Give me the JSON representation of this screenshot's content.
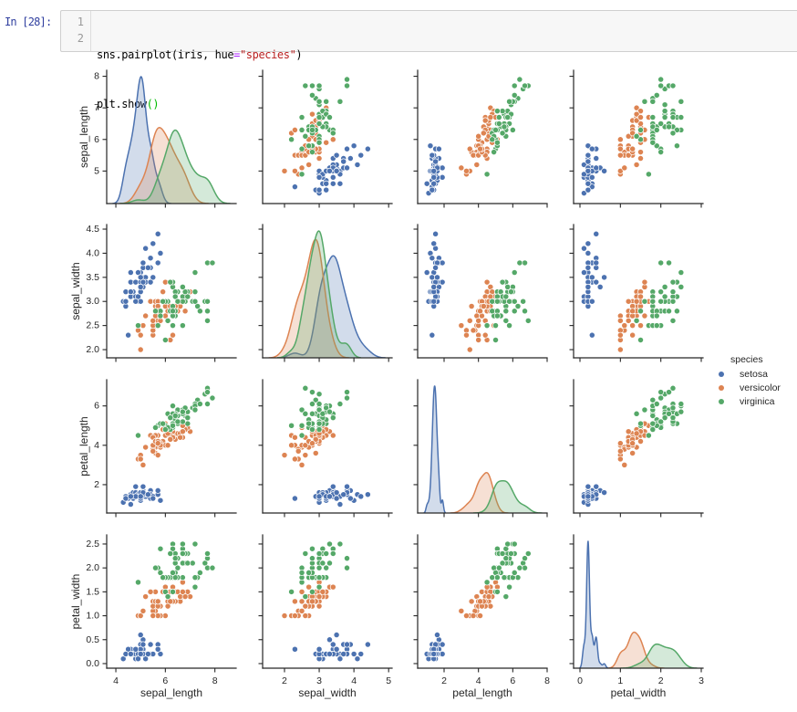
{
  "cell": {
    "prompt": "In [28]:",
    "lines": [
      {
        "number": "1",
        "tokens": [
          {
            "text": "sns.pairplot(iris, hue",
            "kind": "plain"
          },
          {
            "text": "=",
            "kind": "operator"
          },
          {
            "text": "\"species\"",
            "kind": "string"
          },
          {
            "text": ")",
            "kind": "plain"
          }
        ]
      },
      {
        "number": "2",
        "tokens": [
          {
            "text": "plt.show",
            "kind": "plain"
          },
          {
            "text": "()",
            "kind": "bracket"
          }
        ]
      }
    ]
  },
  "chart_data": {
    "type": "scatter",
    "subtype": "pairplot",
    "title": "",
    "grid": false,
    "diag_kind": "kde",
    "hue": "species",
    "variables": [
      "sepal_length",
      "sepal_width",
      "petal_length",
      "petal_width"
    ],
    "axes": {
      "sepal_length": {
        "xlim": [
          3.63,
          8.86
        ],
        "ylim": [
          3.97,
          8.19
        ],
        "xticks": [
          4,
          6,
          8
        ],
        "xtick_labels": [
          "4",
          "6",
          "8"
        ],
        "yticks": [
          5,
          6,
          7,
          8
        ],
        "ytick_labels": [
          "5",
          "6",
          "7",
          "8"
        ]
      },
      "sepal_width": {
        "xlim": [
          1.37,
          5.1
        ],
        "ylim": [
          1.83,
          4.595
        ],
        "xticks": [
          2,
          3,
          4,
          5
        ],
        "xtick_labels": [
          "2",
          "3",
          "4",
          "5"
        ],
        "yticks": [
          2.0,
          2.5,
          3.0,
          3.5,
          4.0,
          4.5
        ],
        "ytick_labels": [
          "2.0",
          "2.5",
          "3.0",
          "3.5",
          "4.0",
          "4.5"
        ]
      },
      "petal_length": {
        "xlim": [
          0.46,
          8.0
        ],
        "ylim": [
          0.56,
          7.33
        ],
        "xticks": [
          2,
          4,
          6,
          8
        ],
        "xtick_labels": [
          "2",
          "4",
          "6",
          "8"
        ],
        "yticks": [
          2,
          4,
          6
        ],
        "ytick_labels": [
          "2",
          "4",
          "6"
        ]
      },
      "petal_width": {
        "xlim": [
          -0.158,
          3.045
        ],
        "ylim": [
          -0.096,
          2.69
        ],
        "xticks": [
          0,
          1,
          2,
          3
        ],
        "xtick_labels": [
          "0",
          "1",
          "2",
          "3"
        ],
        "yticks": [
          0.0,
          0.5,
          1.0,
          1.5,
          2.0,
          2.5
        ],
        "ytick_labels": [
          "0.0",
          "0.5",
          "1.0",
          "1.5",
          "2.0",
          "2.5"
        ]
      }
    },
    "legend": {
      "title": "species",
      "position": "right",
      "entries": [
        {
          "label": "setosa",
          "color": "#4c72b0"
        },
        {
          "label": "versicolor",
          "color": "#dd8452"
        },
        {
          "label": "virginica",
          "color": "#55a868"
        }
      ]
    },
    "point_columns": [
      "sepal_length",
      "sepal_width",
      "petal_length",
      "petal_width"
    ],
    "series": [
      {
        "name": "setosa",
        "color": "#4c72b0",
        "points": [
          [
            5.1,
            3.5,
            1.4,
            0.2
          ],
          [
            4.9,
            3.0,
            1.4,
            0.2
          ],
          [
            4.7,
            3.2,
            1.3,
            0.2
          ],
          [
            4.6,
            3.1,
            1.5,
            0.2
          ],
          [
            5.0,
            3.6,
            1.4,
            0.2
          ],
          [
            5.4,
            3.9,
            1.7,
            0.4
          ],
          [
            4.6,
            3.4,
            1.4,
            0.3
          ],
          [
            5.0,
            3.4,
            1.5,
            0.2
          ],
          [
            4.4,
            2.9,
            1.4,
            0.2
          ],
          [
            4.9,
            3.1,
            1.5,
            0.1
          ],
          [
            5.4,
            3.7,
            1.5,
            0.2
          ],
          [
            4.8,
            3.4,
            1.6,
            0.2
          ],
          [
            4.8,
            3.0,
            1.4,
            0.1
          ],
          [
            4.3,
            3.0,
            1.1,
            0.1
          ],
          [
            5.8,
            4.0,
            1.2,
            0.2
          ],
          [
            5.7,
            4.4,
            1.5,
            0.4
          ],
          [
            5.4,
            3.9,
            1.3,
            0.4
          ],
          [
            5.1,
            3.5,
            1.4,
            0.3
          ],
          [
            5.7,
            3.8,
            1.7,
            0.3
          ],
          [
            5.1,
            3.8,
            1.5,
            0.3
          ],
          [
            5.4,
            3.4,
            1.7,
            0.2
          ],
          [
            5.1,
            3.7,
            1.5,
            0.4
          ],
          [
            4.6,
            3.6,
            1.0,
            0.2
          ],
          [
            5.1,
            3.3,
            1.7,
            0.5
          ],
          [
            4.8,
            3.4,
            1.9,
            0.2
          ],
          [
            5.0,
            3.0,
            1.6,
            0.2
          ],
          [
            5.0,
            3.4,
            1.6,
            0.4
          ],
          [
            5.2,
            3.5,
            1.5,
            0.2
          ],
          [
            5.2,
            3.4,
            1.4,
            0.2
          ],
          [
            4.7,
            3.2,
            1.6,
            0.2
          ],
          [
            4.8,
            3.1,
            1.6,
            0.2
          ],
          [
            5.4,
            3.4,
            1.5,
            0.4
          ],
          [
            5.2,
            4.1,
            1.5,
            0.1
          ],
          [
            5.5,
            4.2,
            1.4,
            0.2
          ],
          [
            4.9,
            3.1,
            1.5,
            0.2
          ],
          [
            5.0,
            3.2,
            1.2,
            0.2
          ],
          [
            5.5,
            3.5,
            1.3,
            0.2
          ],
          [
            4.9,
            3.6,
            1.4,
            0.1
          ],
          [
            4.4,
            3.0,
            1.3,
            0.2
          ],
          [
            5.1,
            3.4,
            1.5,
            0.2
          ],
          [
            5.0,
            3.5,
            1.3,
            0.3
          ],
          [
            4.5,
            2.3,
            1.3,
            0.3
          ],
          [
            4.4,
            3.2,
            1.3,
            0.2
          ],
          [
            5.0,
            3.5,
            1.6,
            0.6
          ],
          [
            5.1,
            3.8,
            1.9,
            0.4
          ],
          [
            4.8,
            3.0,
            1.4,
            0.3
          ],
          [
            5.1,
            3.8,
            1.6,
            0.2
          ],
          [
            4.6,
            3.2,
            1.4,
            0.2
          ],
          [
            5.3,
            3.7,
            1.5,
            0.2
          ],
          [
            5.0,
            3.3,
            1.4,
            0.2
          ]
        ]
      },
      {
        "name": "versicolor",
        "color": "#dd8452",
        "points": [
          [
            7.0,
            3.2,
            4.7,
            1.4
          ],
          [
            6.4,
            3.2,
            4.5,
            1.5
          ],
          [
            6.9,
            3.1,
            4.9,
            1.5
          ],
          [
            5.5,
            2.3,
            4.0,
            1.3
          ],
          [
            6.5,
            2.8,
            4.6,
            1.5
          ],
          [
            5.7,
            2.8,
            4.5,
            1.3
          ],
          [
            6.3,
            3.3,
            4.7,
            1.6
          ],
          [
            4.9,
            2.4,
            3.3,
            1.0
          ],
          [
            6.6,
            2.9,
            4.6,
            1.3
          ],
          [
            5.2,
            2.7,
            3.9,
            1.4
          ],
          [
            5.0,
            2.0,
            3.5,
            1.0
          ],
          [
            5.9,
            3.0,
            4.2,
            1.5
          ],
          [
            6.0,
            2.2,
            4.0,
            1.0
          ],
          [
            6.1,
            2.9,
            4.7,
            1.4
          ],
          [
            5.6,
            2.9,
            3.6,
            1.3
          ],
          [
            6.7,
            3.1,
            4.4,
            1.4
          ],
          [
            5.6,
            3.0,
            4.5,
            1.5
          ],
          [
            5.8,
            2.7,
            4.1,
            1.0
          ],
          [
            6.2,
            2.2,
            4.5,
            1.5
          ],
          [
            5.6,
            2.5,
            3.9,
            1.1
          ],
          [
            5.9,
            3.2,
            4.8,
            1.8
          ],
          [
            6.1,
            2.8,
            4.0,
            1.3
          ],
          [
            6.3,
            2.5,
            4.9,
            1.5
          ],
          [
            6.1,
            2.8,
            4.7,
            1.2
          ],
          [
            6.4,
            2.9,
            4.3,
            1.3
          ],
          [
            6.6,
            3.0,
            4.4,
            1.4
          ],
          [
            6.8,
            2.8,
            4.8,
            1.4
          ],
          [
            6.7,
            3.0,
            5.0,
            1.7
          ],
          [
            6.0,
            2.9,
            4.5,
            1.5
          ],
          [
            5.7,
            2.6,
            3.5,
            1.0
          ],
          [
            5.5,
            2.4,
            3.8,
            1.1
          ],
          [
            5.5,
            2.4,
            3.7,
            1.0
          ],
          [
            5.8,
            2.7,
            3.9,
            1.2
          ],
          [
            6.0,
            2.7,
            5.1,
            1.6
          ],
          [
            5.4,
            3.0,
            4.5,
            1.5
          ],
          [
            6.0,
            3.4,
            4.5,
            1.6
          ],
          [
            6.7,
            3.1,
            4.7,
            1.5
          ],
          [
            6.3,
            2.3,
            4.4,
            1.3
          ],
          [
            5.6,
            3.0,
            4.1,
            1.3
          ],
          [
            5.5,
            2.5,
            4.0,
            1.3
          ],
          [
            5.5,
            2.6,
            4.4,
            1.2
          ],
          [
            6.1,
            3.0,
            4.6,
            1.4
          ],
          [
            5.8,
            2.6,
            4.0,
            1.2
          ],
          [
            5.0,
            2.3,
            3.3,
            1.0
          ],
          [
            5.6,
            2.7,
            4.2,
            1.3
          ],
          [
            5.7,
            3.0,
            4.2,
            1.2
          ],
          [
            5.7,
            2.9,
            4.2,
            1.3
          ],
          [
            6.2,
            2.9,
            4.3,
            1.3
          ],
          [
            5.1,
            2.5,
            3.0,
            1.1
          ],
          [
            5.7,
            2.8,
            4.1,
            1.3
          ]
        ]
      },
      {
        "name": "virginica",
        "color": "#55a868",
        "points": [
          [
            6.3,
            3.3,
            6.0,
            2.5
          ],
          [
            5.8,
            2.7,
            5.1,
            1.9
          ],
          [
            7.1,
            3.0,
            5.9,
            2.1
          ],
          [
            6.3,
            2.9,
            5.6,
            1.8
          ],
          [
            6.5,
            3.0,
            5.8,
            2.2
          ],
          [
            7.6,
            3.0,
            6.6,
            2.1
          ],
          [
            4.9,
            2.5,
            4.5,
            1.7
          ],
          [
            7.3,
            2.9,
            6.3,
            1.8
          ],
          [
            6.7,
            2.5,
            5.8,
            1.8
          ],
          [
            7.2,
            3.6,
            6.1,
            2.5
          ],
          [
            6.5,
            3.2,
            5.1,
            2.0
          ],
          [
            6.4,
            2.7,
            5.3,
            1.9
          ],
          [
            6.8,
            3.0,
            5.5,
            2.1
          ],
          [
            5.7,
            2.5,
            5.0,
            2.0
          ],
          [
            5.8,
            2.8,
            5.1,
            2.4
          ],
          [
            6.4,
            3.2,
            5.3,
            2.3
          ],
          [
            6.5,
            3.0,
            5.5,
            1.8
          ],
          [
            7.7,
            3.8,
            6.7,
            2.2
          ],
          [
            7.7,
            2.6,
            6.9,
            2.3
          ],
          [
            6.0,
            2.2,
            5.0,
            1.5
          ],
          [
            6.9,
            3.2,
            5.7,
            2.3
          ],
          [
            5.6,
            2.8,
            4.9,
            2.0
          ],
          [
            7.7,
            2.8,
            6.7,
            2.0
          ],
          [
            6.3,
            2.7,
            4.9,
            1.8
          ],
          [
            6.7,
            3.3,
            5.7,
            2.1
          ],
          [
            7.2,
            3.2,
            6.0,
            1.8
          ],
          [
            6.2,
            2.8,
            4.8,
            1.8
          ],
          [
            6.1,
            3.0,
            4.9,
            1.8
          ],
          [
            6.4,
            2.8,
            5.6,
            2.1
          ],
          [
            7.2,
            3.0,
            5.8,
            1.6
          ],
          [
            7.4,
            2.8,
            6.1,
            1.9
          ],
          [
            7.9,
            3.8,
            6.4,
            2.0
          ],
          [
            6.4,
            2.8,
            5.6,
            2.2
          ],
          [
            6.3,
            2.8,
            5.1,
            1.5
          ],
          [
            6.1,
            2.6,
            5.6,
            1.4
          ],
          [
            7.7,
            3.0,
            6.1,
            2.3
          ],
          [
            6.3,
            3.4,
            5.6,
            2.4
          ],
          [
            6.4,
            3.1,
            5.5,
            1.8
          ],
          [
            6.0,
            3.0,
            4.8,
            1.8
          ],
          [
            6.9,
            3.1,
            5.4,
            2.1
          ],
          [
            6.7,
            3.1,
            5.6,
            2.4
          ],
          [
            6.9,
            3.1,
            5.1,
            2.3
          ],
          [
            5.8,
            2.7,
            5.1,
            1.9
          ],
          [
            6.8,
            3.2,
            5.9,
            2.3
          ],
          [
            6.7,
            3.3,
            5.7,
            2.5
          ],
          [
            6.7,
            3.0,
            5.2,
            2.3
          ],
          [
            6.3,
            2.5,
            5.0,
            1.9
          ],
          [
            6.5,
            3.0,
            5.2,
            2.0
          ],
          [
            6.2,
            3.4,
            5.4,
            2.3
          ],
          [
            5.9,
            3.0,
            5.1,
            1.8
          ]
        ]
      }
    ]
  }
}
